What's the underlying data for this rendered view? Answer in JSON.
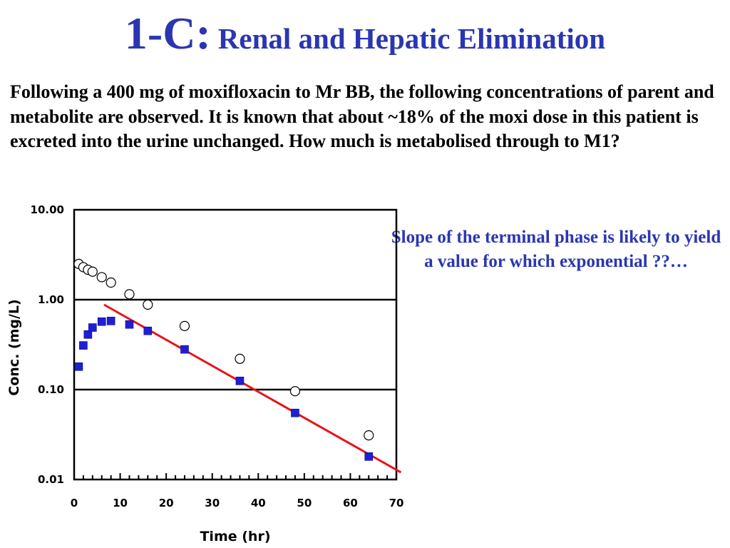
{
  "slide": {
    "title_number": "1-C:",
    "title_text": "Renal and Hepatic Elimination",
    "body": "Following a 400 mg of moxifloxacin to Mr BB, the following concentrations of parent and metabolite are observed.  It is known that about ~18% of the moxi dose in this patient is excreted into the urine unchanged.  How much is metabolised through to M1?",
    "note": "Slope of the terminal phase is likely to yield a value for which exponential ??…"
  },
  "colors": {
    "title_blue": "#2a36b1",
    "marker_blue": "#1f1fd6",
    "fit_line_red": "#e8141c"
  },
  "chart_data": {
    "type": "scatter",
    "xlabel": "Time (hr)",
    "ylabel": "Conc. (mg/L)",
    "xlim": [
      0,
      70
    ],
    "ylim": [
      0.01,
      10
    ],
    "yscale": "log",
    "x_ticks": [
      "0",
      "10",
      "20",
      "30",
      "40",
      "50",
      "60",
      "70"
    ],
    "y_ticks": [
      "10.00",
      "1.00",
      "0.10",
      "0.01"
    ],
    "grid": "horizontal lines at 1.00 and 0.10",
    "series": [
      {
        "marker": "open-circle",
        "points": [
          [
            1,
            2.5
          ],
          [
            2,
            2.3
          ],
          [
            3,
            2.15
          ],
          [
            4,
            2.05
          ],
          [
            6,
            1.78
          ],
          [
            8,
            1.55
          ],
          [
            12,
            1.15
          ],
          [
            16,
            0.88
          ],
          [
            24,
            0.51
          ],
          [
            36,
            0.22
          ],
          [
            48,
            0.096
          ],
          [
            64,
            0.031
          ]
        ]
      },
      {
        "marker": "filled-square",
        "points": [
          [
            1,
            0.18
          ],
          [
            2,
            0.31
          ],
          [
            3,
            0.41
          ],
          [
            4,
            0.49
          ],
          [
            6,
            0.57
          ],
          [
            8,
            0.58
          ],
          [
            12,
            0.53
          ],
          [
            16,
            0.45
          ],
          [
            24,
            0.28
          ],
          [
            36,
            0.125
          ],
          [
            48,
            0.055
          ],
          [
            64,
            0.018
          ]
        ]
      }
    ],
    "fit_line": {
      "from": [
        6.5,
        0.88
      ],
      "to": [
        71,
        0.012
      ]
    }
  }
}
